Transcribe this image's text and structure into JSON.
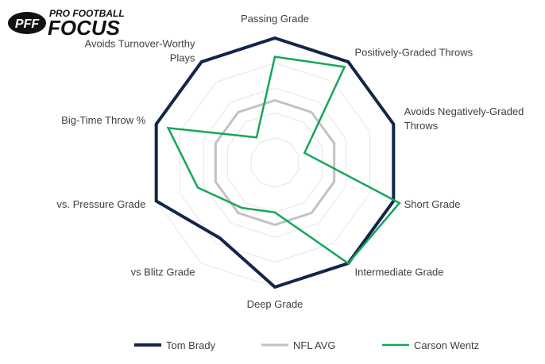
{
  "logo": {
    "line1": "PRO FOOTBALL",
    "line2": "FOCUS",
    "mark": "PFF"
  },
  "colors": {
    "grid": "#e6e6e6",
    "axis_text": "#404040",
    "brady": "#13254a",
    "nfl_avg": "#c2c2c2",
    "wentz": "#16a65a"
  },
  "chart_data": {
    "type": "radar",
    "title": "",
    "categories": [
      [
        "Passing Grade"
      ],
      [
        "Positively-Graded Throws"
      ],
      [
        "Avoids Negatively-Graded",
        "Throws"
      ],
      [
        "Short Grade"
      ],
      [
        "Intermediate Grade"
      ],
      [
        "Deep Grade"
      ],
      [
        "vs Blitz Grade"
      ],
      [
        "vs. Pressure Grade"
      ],
      [
        "Big-Time Throw %"
      ],
      [
        "Avoids Turnover-Worthy",
        "Plays"
      ]
    ],
    "rlim": [
      0,
      1
    ],
    "grid_levels": 5,
    "grid": true,
    "legend_position": "bottom",
    "series": [
      {
        "name": "Tom Brady",
        "color": "#13254a",
        "values": [
          1.0,
          1.0,
          1.0,
          1.0,
          1.0,
          1.0,
          0.75,
          1.0,
          1.0,
          1.0
        ]
      },
      {
        "name": "NFL AVG",
        "color": "#c2c2c2",
        "values": [
          0.5,
          0.5,
          0.5,
          0.5,
          0.5,
          0.5,
          0.5,
          0.5,
          0.5,
          0.5
        ]
      },
      {
        "name": "Carson Wentz",
        "color": "#16a65a",
        "values": [
          0.85,
          0.95,
          0.25,
          1.05,
          1.0,
          0.4,
          0.45,
          0.65,
          0.9,
          0.25
        ]
      }
    ]
  }
}
